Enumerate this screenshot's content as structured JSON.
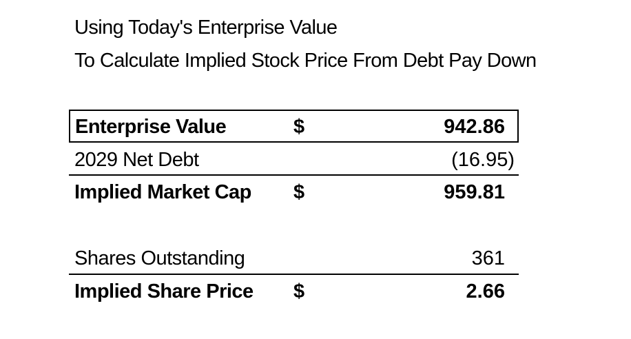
{
  "title": {
    "line1": "Using Today's Enterprise Value",
    "line2": "To Calculate Implied Stock Price From Debt Pay Down"
  },
  "rows": {
    "enterprise_value": {
      "label": "Enterprise Value",
      "currency": "$",
      "value": "942.86"
    },
    "net_debt": {
      "label": "2029 Net Debt",
      "value": "(16.95)"
    },
    "market_cap": {
      "label": "Implied Market Cap",
      "currency": "$",
      "value": "959.81"
    },
    "shares": {
      "label": "Shares Outstanding",
      "value": "361"
    },
    "share_price": {
      "label": "Implied Share Price",
      "currency": "$",
      "value": "2.66"
    }
  }
}
